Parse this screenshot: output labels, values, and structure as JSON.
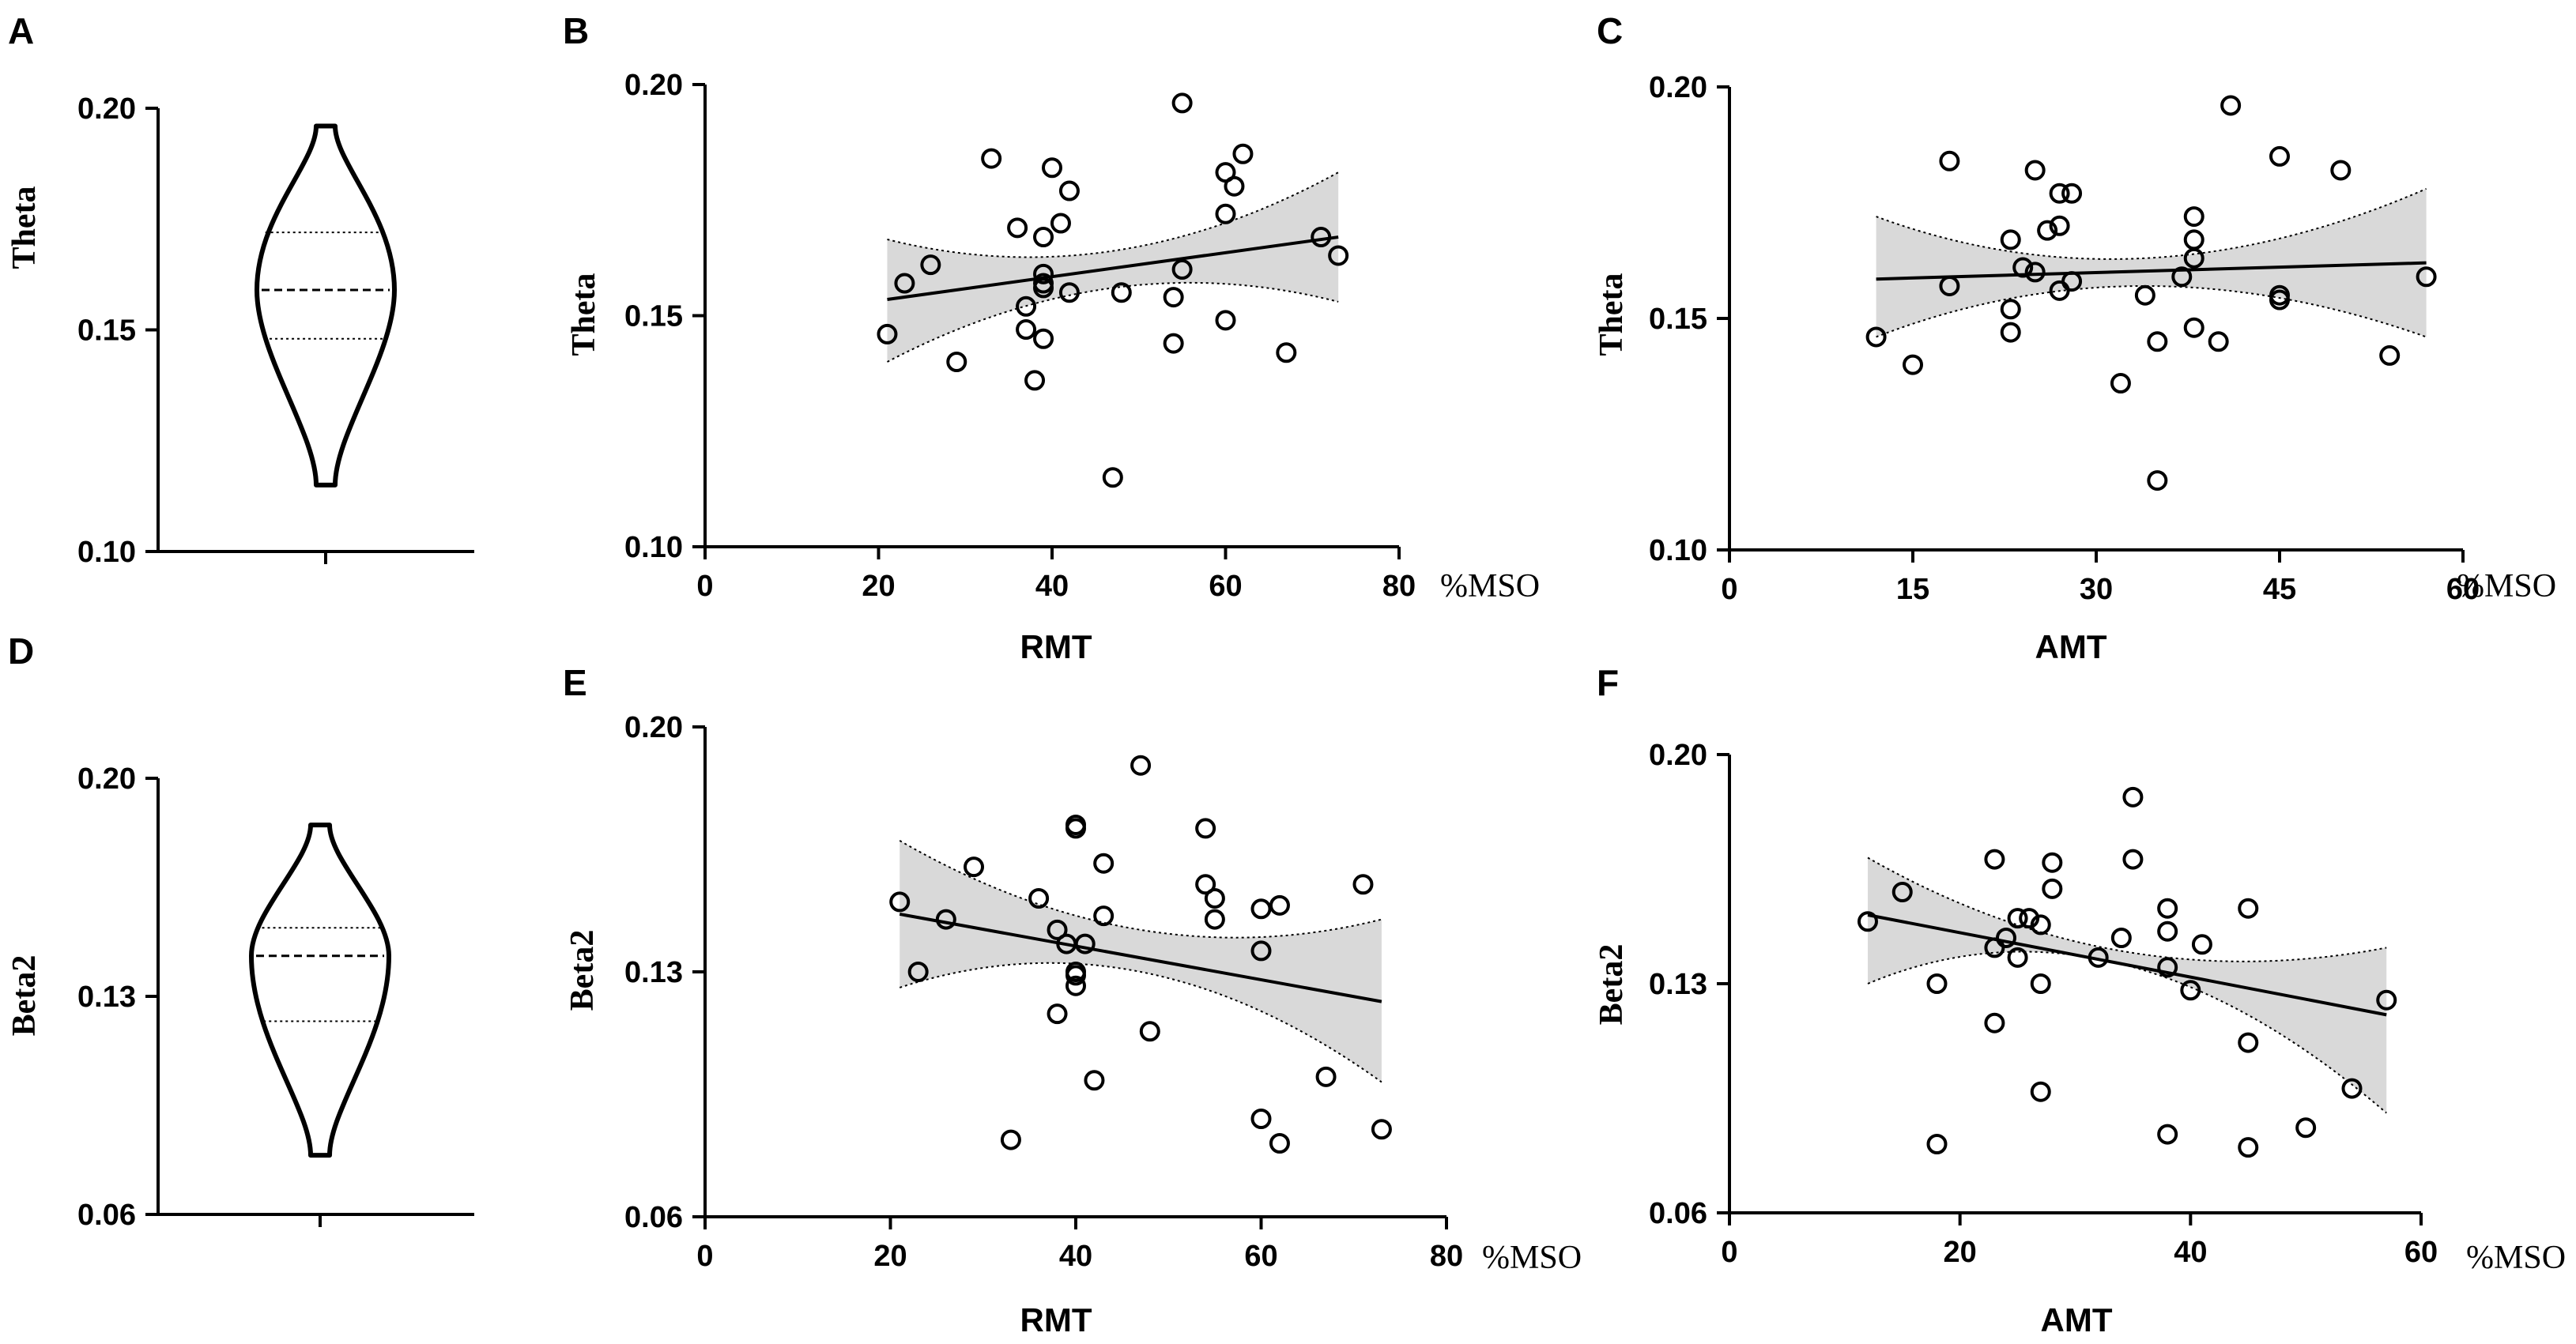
{
  "chart_data": [
    {
      "panel": "A",
      "type": "violin",
      "ylabel": "Theta",
      "yticks": [
        "0.10",
        "0.15",
        "0.20"
      ],
      "ylim": [
        0.1,
        0.2
      ],
      "min": 0.115,
      "max": 0.196,
      "q1": 0.148,
      "median": 0.159,
      "q3": 0.172
    },
    {
      "panel": "B",
      "type": "scatter",
      "xlabel": "RMT",
      "unit": "%MSO",
      "ylabel": "Theta",
      "xlim": [
        0,
        80
      ],
      "xticks": [
        "0",
        "20",
        "40",
        "60",
        "80"
      ],
      "ylim": [
        0.1,
        0.2
      ],
      "yticks": [
        "0.10",
        "0.15",
        "0.20"
      ],
      "points": [
        [
          21,
          0.146
        ],
        [
          23,
          0.157
        ],
        [
          26,
          0.161
        ],
        [
          29,
          0.14
        ],
        [
          33,
          0.184
        ],
        [
          36,
          0.169
        ],
        [
          37,
          0.152
        ],
        [
          37,
          0.147
        ],
        [
          38,
          0.136
        ],
        [
          39,
          0.145
        ],
        [
          39,
          0.159
        ],
        [
          39,
          0.167
        ],
        [
          40,
          0.182
        ],
        [
          41,
          0.17
        ],
        [
          42,
          0.177
        ],
        [
          42,
          0.155
        ],
        [
          47,
          0.115
        ],
        [
          48,
          0.155
        ],
        [
          54,
          0.154
        ],
        [
          54,
          0.144
        ],
        [
          55,
          0.16
        ],
        [
          55,
          0.196
        ],
        [
          60,
          0.149
        ],
        [
          60,
          0.172
        ],
        [
          60,
          0.181
        ],
        [
          61,
          0.178
        ],
        [
          62,
          0.185
        ],
        [
          67,
          0.142
        ],
        [
          71,
          0.167
        ],
        [
          73,
          0.163
        ],
        [
          39,
          0.157
        ],
        [
          39,
          0.156
        ]
      ],
      "fit": {
        "x": [
          21,
          73
        ],
        "y": [
          0.1535,
          0.167
        ]
      },
      "band": {
        "x": [
          21,
          47,
          73
        ],
        "upper": [
          0.1665,
          0.164,
          0.181
        ],
        "lower": [
          0.14,
          0.156,
          0.153
        ]
      }
    },
    {
      "panel": "C",
      "type": "scatter",
      "xlabel": "AMT",
      "unit": "%MSO",
      "ylabel": "Theta",
      "xlim": [
        0,
        60
      ],
      "xticks": [
        "0",
        "15",
        "30",
        "45",
        "60"
      ],
      "ylim": [
        0.1,
        0.2
      ],
      "yticks": [
        "0.10",
        "0.15",
        "0.20"
      ],
      "points": [
        [
          12,
          0.146
        ],
        [
          15,
          0.14
        ],
        [
          18,
          0.157
        ],
        [
          18,
          0.184
        ],
        [
          23,
          0.147
        ],
        [
          23,
          0.152
        ],
        [
          23,
          0.167
        ],
        [
          24,
          0.161
        ],
        [
          25,
          0.182
        ],
        [
          25,
          0.16
        ],
        [
          26,
          0.169
        ],
        [
          27,
          0.156
        ],
        [
          27,
          0.17
        ],
        [
          27,
          0.177
        ],
        [
          28,
          0.177
        ],
        [
          28,
          0.158
        ],
        [
          32,
          0.136
        ],
        [
          34,
          0.155
        ],
        [
          35,
          0.115
        ],
        [
          35,
          0.145
        ],
        [
          37,
          0.159
        ],
        [
          38,
          0.148
        ],
        [
          38,
          0.163
        ],
        [
          38,
          0.167
        ],
        [
          38,
          0.172
        ],
        [
          40,
          0.145
        ],
        [
          41,
          0.196
        ],
        [
          45,
          0.154
        ],
        [
          45,
          0.185
        ],
        [
          45,
          0.155
        ],
        [
          50,
          0.182
        ],
        [
          54,
          0.142
        ],
        [
          57,
          0.159
        ]
      ],
      "fit": {
        "x": [
          12,
          57
        ],
        "y": [
          0.1585,
          0.162
        ]
      },
      "band": {
        "x": [
          12,
          34,
          57
        ],
        "upper": [
          0.172,
          0.163,
          0.178
        ],
        "lower": [
          0.146,
          0.157,
          0.146
        ]
      }
    },
    {
      "panel": "D",
      "type": "violin",
      "ylabel": "Beta2",
      "yticks": [
        "0.06",
        "0.13",
        "0.20"
      ],
      "ylim": [
        0.06,
        0.2
      ],
      "min": 0.079,
      "max": 0.185,
      "q1": 0.122,
      "median": 0.143,
      "q3": 0.152
    },
    {
      "panel": "E",
      "type": "scatter",
      "xlabel": "RMT",
      "unit": "%MSO",
      "ylabel": "Beta2",
      "xlim": [
        0,
        80
      ],
      "xticks": [
        "0",
        "20",
        "40",
        "60",
        "80"
      ],
      "ylim": [
        0.06,
        0.2
      ],
      "yticks": [
        "0.06",
        "0.13",
        "0.20"
      ],
      "points": [
        [
          21,
          0.15
        ],
        [
          23,
          0.13
        ],
        [
          26,
          0.145
        ],
        [
          29,
          0.16
        ],
        [
          33,
          0.082
        ],
        [
          36,
          0.151
        ],
        [
          38,
          0.118
        ],
        [
          38,
          0.142
        ],
        [
          39,
          0.138
        ],
        [
          40,
          0.172
        ],
        [
          40,
          0.171
        ],
        [
          40,
          0.129
        ],
        [
          40,
          0.126
        ],
        [
          40,
          0.13
        ],
        [
          41,
          0.138
        ],
        [
          42,
          0.099
        ],
        [
          43,
          0.146
        ],
        [
          43,
          0.161
        ],
        [
          47,
          0.189
        ],
        [
          48,
          0.113
        ],
        [
          54,
          0.155
        ],
        [
          54,
          0.171
        ],
        [
          55,
          0.151
        ],
        [
          55,
          0.145
        ],
        [
          60,
          0.148
        ],
        [
          60,
          0.088
        ],
        [
          60,
          0.136
        ],
        [
          62,
          0.081
        ],
        [
          62,
          0.149
        ],
        [
          67,
          0.1
        ],
        [
          71,
          0.155
        ],
        [
          73,
          0.085
        ]
      ],
      "fit": {
        "x": [
          21,
          73
        ],
        "y": [
          0.1465,
          0.1215
        ]
      },
      "band": {
        "x": [
          21,
          47,
          73
        ],
        "upper": [
          0.1675,
          0.142,
          0.145
        ],
        "lower": [
          0.1255,
          0.13,
          0.0985
        ]
      }
    },
    {
      "panel": "F",
      "type": "scatter",
      "xlabel": "AMT",
      "unit": "%MSO",
      "ylabel": "Beta2",
      "xlim": [
        0,
        60
      ],
      "xticks": [
        "0",
        "20",
        "40",
        "60"
      ],
      "ylim": [
        0.06,
        0.2
      ],
      "yticks": [
        "0.06",
        "0.13",
        "0.20"
      ],
      "points": [
        [
          12,
          0.149
        ],
        [
          15,
          0.158
        ],
        [
          18,
          0.13
        ],
        [
          18,
          0.081
        ],
        [
          23,
          0.141
        ],
        [
          23,
          0.168
        ],
        [
          23,
          0.118
        ],
        [
          24,
          0.144
        ],
        [
          25,
          0.15
        ],
        [
          25,
          0.138
        ],
        [
          26,
          0.15
        ],
        [
          27,
          0.148
        ],
        [
          27,
          0.13
        ],
        [
          27,
          0.097
        ],
        [
          28,
          0.159
        ],
        [
          28,
          0.167
        ],
        [
          32,
          0.138
        ],
        [
          34,
          0.144
        ],
        [
          35,
          0.168
        ],
        [
          35,
          0.187
        ],
        [
          38,
          0.153
        ],
        [
          38,
          0.146
        ],
        [
          38,
          0.135
        ],
        [
          38,
          0.084
        ],
        [
          40,
          0.128
        ],
        [
          41,
          0.142
        ],
        [
          45,
          0.112
        ],
        [
          45,
          0.153
        ],
        [
          45,
          0.08
        ],
        [
          50,
          0.086
        ],
        [
          54,
          0.098
        ],
        [
          57,
          0.125
        ]
      ],
      "fit": {
        "x": [
          12,
          57
        ],
        "y": [
          0.151,
          0.1205
        ]
      },
      "band": {
        "x": [
          12,
          34,
          57
        ],
        "upper": [
          0.1685,
          0.14,
          0.141
        ],
        "lower": [
          0.13,
          0.136,
          0.0905
        ]
      }
    }
  ]
}
